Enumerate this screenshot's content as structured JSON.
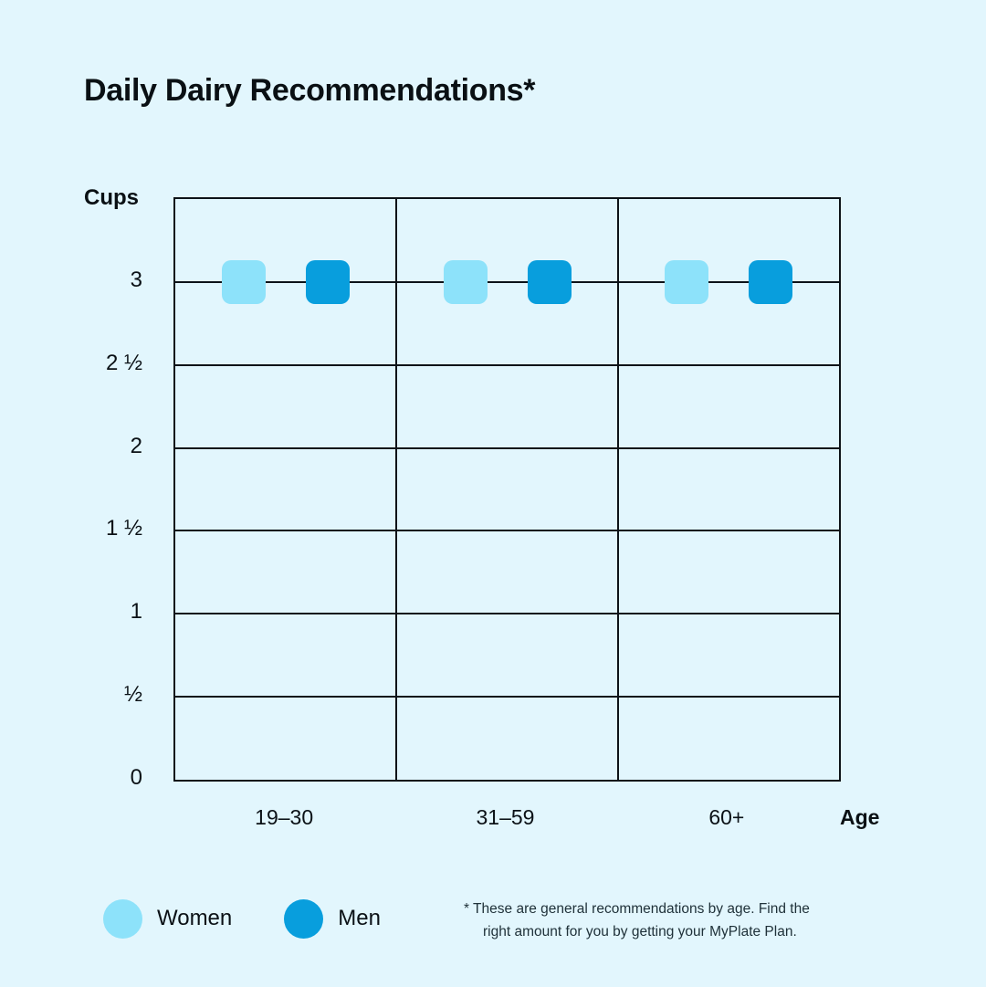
{
  "title": "Daily Dairy Recommendations*",
  "footnote": {
    "line1": "* These are general recommendations by age. Find the",
    "line2": "right amount for you by getting your MyPlate Plan."
  },
  "colors": {
    "background": "#E2F6FD",
    "gridline": "#0D1318",
    "women": "#8DE2FA",
    "men": "#089EDD"
  },
  "chart_data": {
    "type": "scatter",
    "title": "Daily Dairy Recommendations*",
    "categories": [
      "19–30",
      "31–59",
      "60+"
    ],
    "series": [
      {
        "name": "Women",
        "color": "#8DE2FA",
        "values": [
          3,
          3,
          3
        ]
      },
      {
        "name": "Men",
        "color": "#089EDD",
        "values": [
          3,
          3,
          3
        ]
      }
    ],
    "xlabel": "Age",
    "ylabel": "Cups",
    "ylim": [
      0,
      3.5
    ],
    "y_ticks": [
      {
        "value": 0,
        "label": "0"
      },
      {
        "value": 0.5,
        "label": "½"
      },
      {
        "value": 1,
        "label": "1"
      },
      {
        "value": 1.5,
        "label": "1 ½"
      },
      {
        "value": 2,
        "label": "2"
      },
      {
        "value": 2.5,
        "label": "2 ½"
      },
      {
        "value": 3,
        "label": "3"
      }
    ],
    "grid": true,
    "legend_position": "bottom-left",
    "marker": "rounded-square"
  }
}
